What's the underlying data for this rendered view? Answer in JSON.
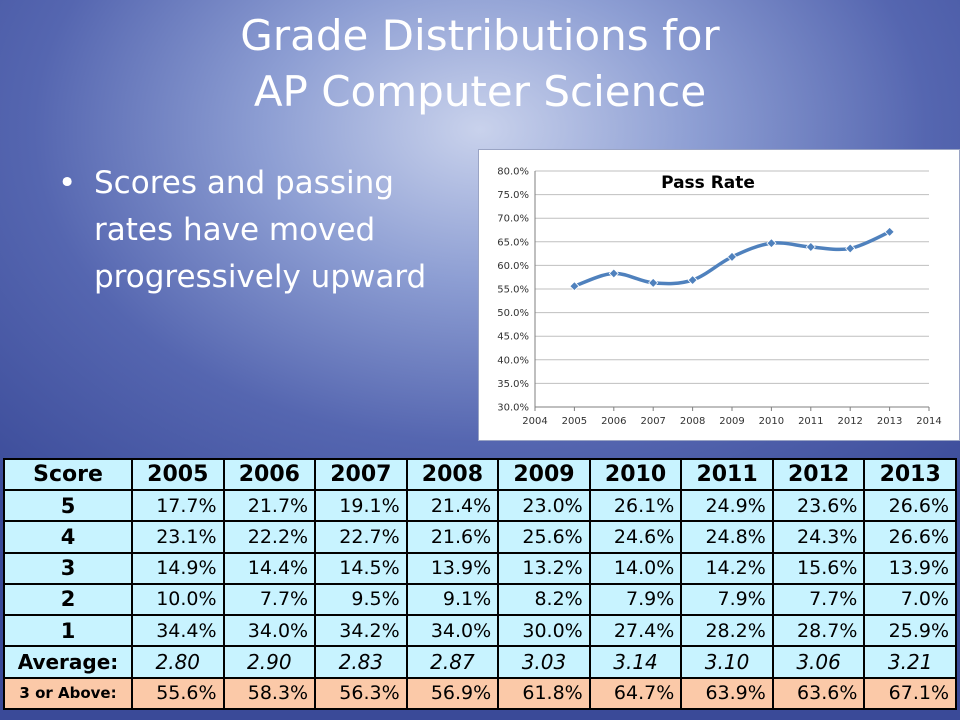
{
  "slide": {
    "title_line1": "Grade Distributions for",
    "title_line2": "AP Computer Science",
    "bullet_symbol": "•",
    "bullet_text": "Scores and passing rates have moved progressively upward"
  },
  "chart_data": {
    "type": "line",
    "title": "Pass Rate",
    "x": [
      2005,
      2006,
      2007,
      2008,
      2009,
      2010,
      2011,
      2012,
      2013
    ],
    "series": [
      {
        "values": [
          55.6,
          58.3,
          56.3,
          56.9,
          61.8,
          64.7,
          63.9,
          63.6,
          67.1
        ]
      }
    ],
    "x_ticks": [
      "2004",
      "2005",
      "2006",
      "2007",
      "2008",
      "2009",
      "2010",
      "2011",
      "2012",
      "2013",
      "2014"
    ],
    "y_ticks": [
      "30.0%",
      "35.0%",
      "40.0%",
      "45.0%",
      "50.0%",
      "55.0%",
      "60.0%",
      "65.0%",
      "70.0%",
      "75.0%",
      "80.0%"
    ],
    "xlim": [
      2004,
      2014
    ],
    "ylim": [
      30,
      80
    ],
    "grid": "horizontal",
    "legend": "none",
    "color": "#4f81bd"
  },
  "table": {
    "header": [
      "Score",
      "2005",
      "2006",
      "2007",
      "2008",
      "2009",
      "2010",
      "2011",
      "2012",
      "2013"
    ],
    "rows": [
      {
        "label": "5",
        "values": [
          "17.7%",
          "21.7%",
          "19.1%",
          "21.4%",
          "23.0%",
          "26.1%",
          "24.9%",
          "23.6%",
          "26.6%"
        ]
      },
      {
        "label": "4",
        "values": [
          "23.1%",
          "22.2%",
          "22.7%",
          "21.6%",
          "25.6%",
          "24.6%",
          "24.8%",
          "24.3%",
          "26.6%"
        ]
      },
      {
        "label": "3",
        "values": [
          "14.9%",
          "14.4%",
          "14.5%",
          "13.9%",
          "13.2%",
          "14.0%",
          "14.2%",
          "15.6%",
          "13.9%"
        ]
      },
      {
        "label": "2",
        "values": [
          "10.0%",
          "7.7%",
          "9.5%",
          "9.1%",
          "8.2%",
          "7.9%",
          "7.9%",
          "7.7%",
          "7.0%"
        ]
      },
      {
        "label": "1",
        "values": [
          "34.4%",
          "34.0%",
          "34.2%",
          "34.0%",
          "30.0%",
          "27.4%",
          "28.2%",
          "28.7%",
          "25.9%"
        ]
      },
      {
        "label": "Average:",
        "values": [
          "2.80",
          "2.90",
          "2.83",
          "2.87",
          "3.03",
          "3.14",
          "3.10",
          "3.06",
          "3.21"
        ]
      },
      {
        "label": "3 or Above:",
        "values": [
          "55.6%",
          "58.3%",
          "56.3%",
          "56.9%",
          "61.8%",
          "64.7%",
          "63.9%",
          "63.6%",
          "67.1%"
        ]
      }
    ],
    "colors": {
      "body": "#c8f3ff",
      "pass_row": "#fbc9a8"
    }
  }
}
